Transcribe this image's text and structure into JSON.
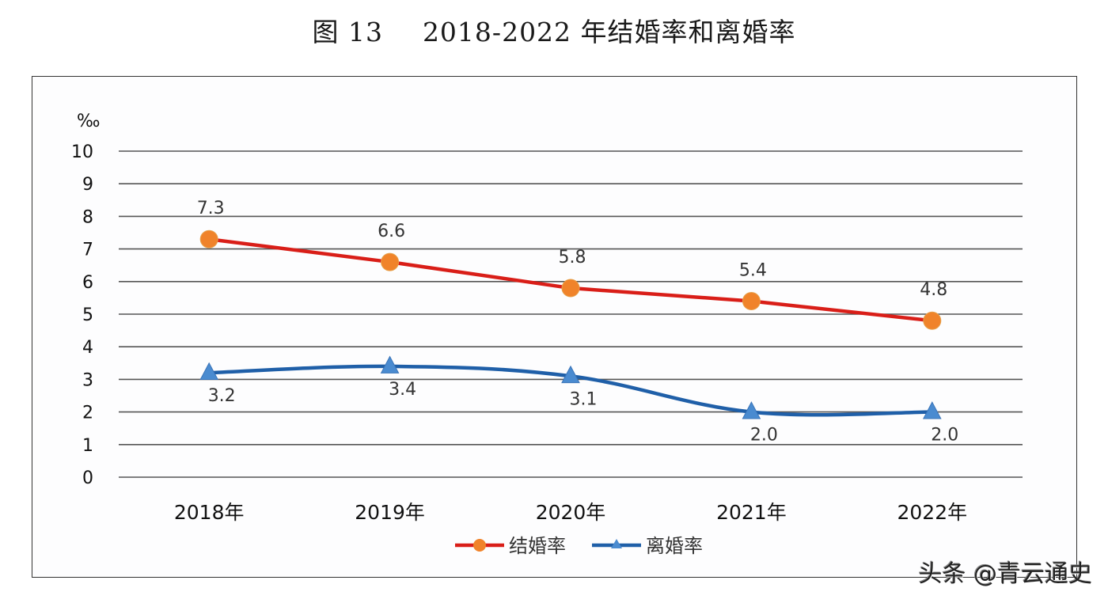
{
  "figure": {
    "label": "图 13",
    "title": "2018-2022 年结婚率和离婚率"
  },
  "watermark": "头条 @青云通史",
  "chart_data": {
    "type": "line",
    "title": "图 13 2018-2022 年结婚率和离婚率",
    "ylabel": "‰",
    "xlabel": "",
    "categories": [
      "2018年",
      "2019年",
      "2020年",
      "2021年",
      "2022年"
    ],
    "ylim": [
      0,
      10
    ],
    "yticks": [
      0,
      1,
      2,
      3,
      4,
      5,
      6,
      7,
      8,
      9,
      10
    ],
    "grid": true,
    "legend_position": "bottom",
    "series": [
      {
        "name": "结婚率",
        "values": [
          7.3,
          6.6,
          5.8,
          5.4,
          4.8
        ],
        "labels": [
          "7.3",
          "6.6",
          "5.8",
          "5.4",
          "4.8"
        ],
        "line_color": "#d91e18",
        "marker": "circle",
        "marker_color": "#f0832a",
        "label_position": "above"
      },
      {
        "name": "离婚率",
        "values": [
          3.2,
          3.4,
          3.1,
          2.0,
          2.0
        ],
        "labels": [
          "3.2",
          "3.4",
          "3.1",
          "2.0",
          "2.0"
        ],
        "line_color": "#1f5fa8",
        "marker": "triangle",
        "marker_color": "#4a8bd0",
        "label_position": "below"
      }
    ]
  }
}
